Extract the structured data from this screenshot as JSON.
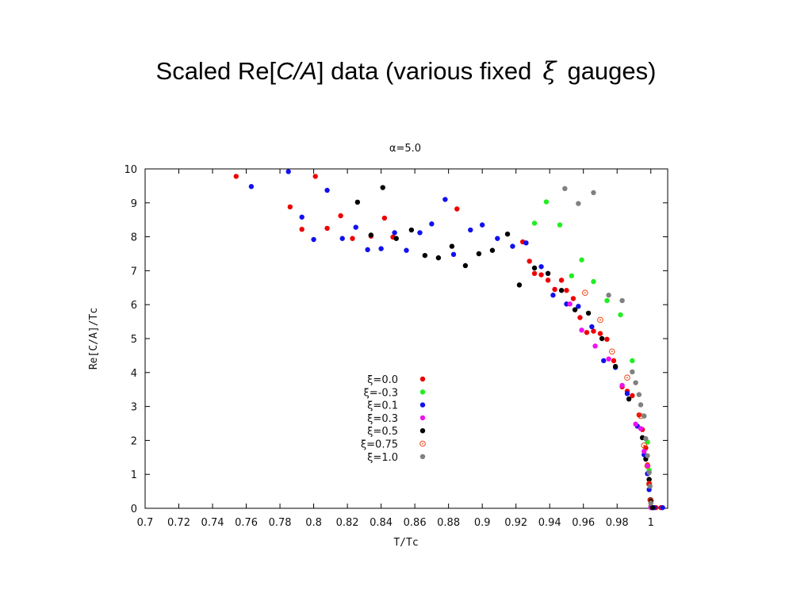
{
  "slide": {
    "title_prefix": "Scaled Re[",
    "title_italic": "C/A",
    "title_middle": "] data (various fixed",
    "title_symbol": "ξ",
    "title_suffix": "gauges)"
  },
  "chart_data": {
    "type": "scatter",
    "title": "α=5.0",
    "xlabel": "T/Tc",
    "ylabel": "Re[C/A]/Tc",
    "xlim": [
      0.7,
      1.01
    ],
    "ylim": [
      0,
      10
    ],
    "xticks": [
      "0.7",
      "0.72",
      "0.74",
      "0.76",
      "0.78",
      "0.8",
      "0.82",
      "0.84",
      "0.86",
      "0.88",
      "0.9",
      "0.92",
      "0.94",
      "0.96",
      "0.98",
      "1"
    ],
    "yticks": [
      "0",
      "1",
      "2",
      "3",
      "4",
      "5",
      "6",
      "7",
      "8",
      "9",
      "10"
    ],
    "grid": false,
    "legend_position": "center",
    "series": [
      {
        "name": "ξ=0.0",
        "color": "#ee0000",
        "marker": "dot",
        "points": [
          [
            0.754,
            9.78
          ],
          [
            0.786,
            8.88
          ],
          [
            0.793,
            8.22
          ],
          [
            0.801,
            9.78
          ],
          [
            0.808,
            8.25
          ],
          [
            0.816,
            8.62
          ],
          [
            0.823,
            7.95
          ],
          [
            0.834,
            8.02
          ],
          [
            0.842,
            8.55
          ],
          [
            0.847,
            7.99
          ],
          [
            0.885,
            8.82
          ],
          [
            0.924,
            7.85
          ],
          [
            0.928,
            7.28
          ],
          [
            0.931,
            6.92
          ],
          [
            0.935,
            6.88
          ],
          [
            0.939,
            6.72
          ],
          [
            0.943,
            6.45
          ],
          [
            0.947,
            6.72
          ],
          [
            0.95,
            6.42
          ],
          [
            0.954,
            6.18
          ],
          [
            0.958,
            5.62
          ],
          [
            0.962,
            5.18
          ],
          [
            0.966,
            5.22
          ],
          [
            0.97,
            5.15
          ],
          [
            0.974,
            4.98
          ],
          [
            0.978,
            4.35
          ],
          [
            0.983,
            3.58
          ],
          [
            0.986,
            3.45
          ],
          [
            0.989,
            3.32
          ],
          [
            0.993,
            2.75
          ],
          [
            0.995,
            2.32
          ],
          [
            0.997,
            1.78
          ],
          [
            0.998,
            1.28
          ],
          [
            0.999,
            0.72
          ],
          [
            0.9995,
            0.25
          ],
          [
            1.0,
            0.05
          ],
          [
            1.003,
            0.02
          ],
          [
            1.006,
            0.02
          ]
        ]
      },
      {
        "name": "ξ=-0.3",
        "color": "#22ee22",
        "marker": "dot",
        "points": [
          [
            0.931,
            8.4
          ],
          [
            0.938,
            9.03
          ],
          [
            0.946,
            8.35
          ],
          [
            0.953,
            6.85
          ],
          [
            0.959,
            7.32
          ],
          [
            0.966,
            6.68
          ],
          [
            0.974,
            6.12
          ],
          [
            0.982,
            5.7
          ],
          [
            0.989,
            4.35
          ],
          [
            0.996,
            2.72
          ],
          [
            0.998,
            1.95
          ],
          [
            0.999,
            1.12
          ],
          [
            1.0,
            0.02
          ]
        ]
      },
      {
        "name": "ξ=0.1",
        "color": "#1111ee",
        "marker": "dot",
        "points": [
          [
            0.763,
            9.48
          ],
          [
            0.785,
            9.92
          ],
          [
            0.793,
            8.58
          ],
          [
            0.8,
            7.92
          ],
          [
            0.808,
            9.37
          ],
          [
            0.817,
            7.95
          ],
          [
            0.825,
            8.28
          ],
          [
            0.832,
            7.62
          ],
          [
            0.84,
            7.65
          ],
          [
            0.848,
            8.12
          ],
          [
            0.855,
            7.6
          ],
          [
            0.863,
            8.12
          ],
          [
            0.87,
            8.38
          ],
          [
            0.878,
            9.1
          ],
          [
            0.883,
            7.48
          ],
          [
            0.893,
            8.2
          ],
          [
            0.9,
            8.35
          ],
          [
            0.909,
            7.95
          ],
          [
            0.918,
            7.72
          ],
          [
            0.926,
            7.82
          ],
          [
            0.935,
            7.12
          ],
          [
            0.942,
            6.28
          ],
          [
            0.95,
            6.02
          ],
          [
            0.957,
            5.95
          ],
          [
            0.965,
            5.35
          ],
          [
            0.972,
            4.35
          ],
          [
            0.979,
            4.15
          ],
          [
            0.986,
            3.38
          ],
          [
            0.992,
            2.42
          ],
          [
            0.996,
            1.58
          ],
          [
            0.998,
            1.02
          ],
          [
            0.999,
            0.55
          ],
          [
            1.0,
            0.18
          ],
          [
            1.002,
            0.02
          ],
          [
            1.007,
            0.02
          ]
        ]
      },
      {
        "name": "ξ=0.3",
        "color": "#ee11ee",
        "marker": "dot",
        "points": [
          [
            0.952,
            6.02
          ],
          [
            0.959,
            5.25
          ],
          [
            0.967,
            4.78
          ],
          [
            0.975,
            4.4
          ],
          [
            0.983,
            3.62
          ],
          [
            0.991,
            2.48
          ],
          [
            0.994,
            2.35
          ],
          [
            0.996,
            1.68
          ],
          [
            0.998,
            1.25
          ],
          [
            0.999,
            0.85
          ],
          [
            1.0,
            0.02
          ]
        ]
      },
      {
        "name": "ξ=0.5",
        "color": "#000000",
        "marker": "dot",
        "points": [
          [
            0.826,
            9.02
          ],
          [
            0.834,
            8.05
          ],
          [
            0.841,
            9.45
          ],
          [
            0.849,
            7.95
          ],
          [
            0.858,
            8.2
          ],
          [
            0.866,
            7.45
          ],
          [
            0.874,
            7.38
          ],
          [
            0.882,
            7.72
          ],
          [
            0.89,
            7.15
          ],
          [
            0.898,
            7.5
          ],
          [
            0.906,
            7.6
          ],
          [
            0.915,
            8.08
          ],
          [
            0.922,
            6.58
          ],
          [
            0.931,
            7.08
          ],
          [
            0.939,
            6.92
          ],
          [
            0.947,
            6.42
          ],
          [
            0.955,
            5.85
          ],
          [
            0.963,
            5.75
          ],
          [
            0.971,
            5.0
          ],
          [
            0.979,
            4.18
          ],
          [
            0.987,
            3.22
          ],
          [
            0.995,
            2.08
          ],
          [
            0.997,
            1.45
          ],
          [
            0.999,
            0.85
          ],
          [
            1.0,
            0.25
          ],
          [
            1.001,
            0.02
          ]
        ]
      },
      {
        "name": "ξ=0.75",
        "color": "#ee4411",
        "marker": "open",
        "points": [
          [
            0.961,
            6.35
          ],
          [
            0.97,
            5.55
          ],
          [
            0.977,
            4.62
          ],
          [
            0.986,
            3.85
          ],
          [
            0.994,
            2.72
          ],
          [
            0.996,
            1.85
          ],
          [
            0.998,
            1.25
          ],
          [
            0.999,
            0.72
          ],
          [
            1.0,
            0.22
          ]
        ]
      },
      {
        "name": "ξ=1.0",
        "color": "#808080",
        "marker": "dot",
        "points": [
          [
            0.949,
            9.42
          ],
          [
            0.957,
            8.98
          ],
          [
            0.966,
            9.3
          ],
          [
            0.975,
            6.28
          ],
          [
            0.983,
            6.12
          ],
          [
            0.989,
            4.02
          ],
          [
            0.991,
            3.7
          ],
          [
            0.993,
            3.35
          ],
          [
            0.994,
            3.05
          ],
          [
            0.996,
            2.72
          ],
          [
            0.997,
            2.05
          ],
          [
            0.998,
            1.55
          ],
          [
            0.999,
            1.05
          ],
          [
            0.9995,
            0.65
          ],
          [
            1.0,
            0.15
          ]
        ]
      }
    ]
  }
}
